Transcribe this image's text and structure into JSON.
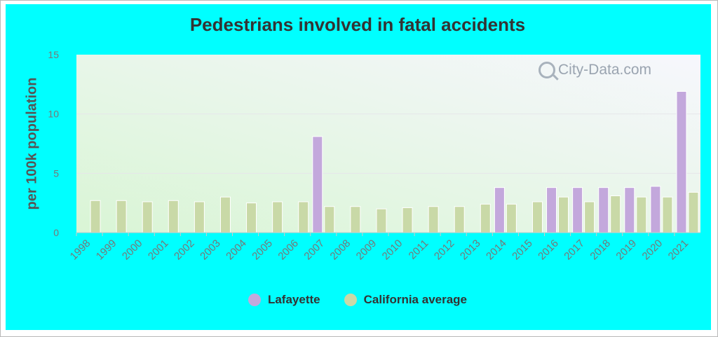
{
  "chart_data": {
    "type": "bar",
    "title": "Pedestrians involved in fatal accidents",
    "xlabel": "",
    "ylabel": "per 100k population",
    "ylim": [
      0,
      15
    ],
    "yticks": [
      0,
      5,
      10,
      15
    ],
    "grid": true,
    "legend_position": "bottom",
    "categories": [
      "1998",
      "1999",
      "2000",
      "2001",
      "2002",
      "2003",
      "2004",
      "2005",
      "2006",
      "2007",
      "2008",
      "2009",
      "2010",
      "2011",
      "2012",
      "2013",
      "2014",
      "2015",
      "2016",
      "2017",
      "2018",
      "2019",
      "2020",
      "2021"
    ],
    "series": [
      {
        "name": "Lafayette",
        "color": "#c3a8dc",
        "values": [
          0,
          0,
          0,
          0,
          0,
          0,
          0,
          0,
          0,
          8.1,
          0,
          0,
          0,
          0,
          0,
          0,
          3.8,
          0,
          3.8,
          3.8,
          3.8,
          3.8,
          3.9,
          11.9
        ]
      },
      {
        "name": "California average",
        "color": "#c9d9a7",
        "values": [
          2.7,
          2.7,
          2.6,
          2.7,
          2.6,
          3.0,
          2.5,
          2.6,
          2.6,
          2.2,
          2.2,
          2.0,
          2.1,
          2.2,
          2.2,
          2.4,
          2.4,
          2.6,
          3.0,
          2.6,
          3.1,
          3.0,
          3.0,
          3.4
        ]
      }
    ]
  },
  "watermark": "City-Data.com",
  "colors": {
    "background": "#00ffff",
    "plot_gradient_start": "#d9f5d5",
    "plot_gradient_end": "#f5f5fd",
    "axis_text": "#777777"
  }
}
